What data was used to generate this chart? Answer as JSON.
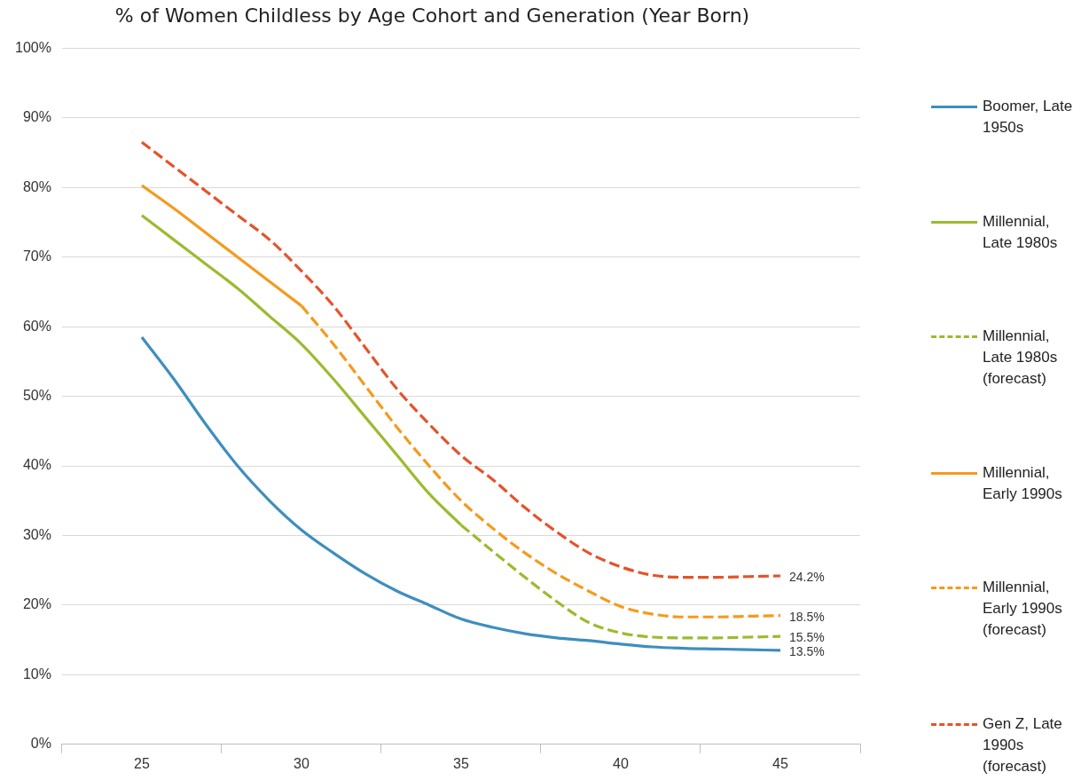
{
  "chart_data": {
    "type": "line",
    "title": "% of Women Childless by Age Cohort and Generation (Year Born)",
    "xlim": [
      22.5,
      47.5
    ],
    "xticks": [
      {
        "value": 22.5,
        "label": null
      },
      25,
      {
        "value": 27.5,
        "label": null
      },
      30,
      {
        "value": 32.5,
        "label": null
      },
      35,
      {
        "value": 37.5,
        "label": null
      },
      40,
      {
        "value": 42.5,
        "label": null
      },
      45,
      {
        "value": 47.5,
        "label": null
      }
    ],
    "ylim": [
      0,
      100
    ],
    "yticks": [
      {
        "value": 0,
        "label": "0%"
      },
      {
        "value": 10,
        "label": "10%"
      },
      {
        "value": 20,
        "label": "20%"
      },
      {
        "value": 30,
        "label": "30%"
      },
      {
        "value": 40,
        "label": "40%"
      },
      {
        "value": 50,
        "label": "50%"
      },
      {
        "value": 60,
        "label": "60%"
      },
      {
        "value": 70,
        "label": "70%"
      },
      {
        "value": 80,
        "label": "80%"
      },
      {
        "value": 90,
        "label": "90%"
      },
      {
        "value": 100,
        "label": "100%"
      }
    ],
    "grid": "y",
    "legend": "right",
    "marker": "none",
    "series": [
      {
        "name": "Boomer, Late 1950s",
        "color": "#3e8ebf",
        "line_style": "solid",
        "x": [
          25,
          26,
          27,
          28,
          29,
          30,
          31,
          32,
          33,
          34,
          35,
          36,
          37,
          38,
          39,
          40,
          41,
          42,
          43,
          44,
          45
        ],
        "values": [
          58.5,
          52.5,
          46,
          40,
          35,
          30.8,
          27.5,
          24.5,
          22,
          20,
          18,
          16.8,
          15.9,
          15.3,
          14.9,
          14.4,
          14.0,
          13.8,
          13.7,
          13.6,
          13.5
        ],
        "value_labels": [
          null,
          null,
          null,
          null,
          null,
          null,
          null,
          null,
          null,
          null,
          null,
          null,
          null,
          null,
          null,
          null,
          null,
          null,
          null,
          null,
          "13.5%"
        ]
      },
      {
        "name": "Millennial, Late 1980s",
        "color": "#9bbb2f",
        "line_style": "solid",
        "x": [
          25,
          26,
          27,
          28,
          29,
          30,
          31,
          32,
          33,
          34,
          35
        ],
        "values": [
          76,
          72.5,
          69,
          65.5,
          61.5,
          57.5,
          52.5,
          47,
          41.5,
          36,
          31.5
        ]
      },
      {
        "name": "Millennial, Late 1980s (forecast)",
        "color": "#9bbb2f",
        "line_style": "dashed",
        "x": [
          35,
          36,
          37,
          38,
          39,
          40,
          41,
          42,
          43,
          44,
          45
        ],
        "values": [
          31.5,
          27.7,
          24,
          20.5,
          17.5,
          16,
          15.4,
          15.3,
          15.3,
          15.4,
          15.5
        ],
        "value_labels": [
          null,
          null,
          null,
          null,
          null,
          null,
          null,
          null,
          null,
          null,
          "15.5%"
        ]
      },
      {
        "name": "Millennial, Early 1990s",
        "color": "#f59a1c",
        "line_style": "solid",
        "x": [
          25,
          26,
          27,
          28,
          29,
          30
        ],
        "values": [
          80.3,
          77,
          73.5,
          70,
          66.5,
          63
        ]
      },
      {
        "name": "Millennial, Early 1990s (forecast)",
        "color": "#f59a1c",
        "line_style": "dashed",
        "x": [
          30,
          31,
          32,
          33,
          34,
          35,
          36,
          37,
          38,
          39,
          40,
          41,
          42,
          43,
          44,
          45
        ],
        "values": [
          63,
          57.5,
          51.5,
          45.5,
          40,
          35,
          31,
          27.5,
          24.5,
          22,
          19.8,
          18.7,
          18.3,
          18.3,
          18.4,
          18.5
        ],
        "value_labels": [
          null,
          null,
          null,
          null,
          null,
          null,
          null,
          null,
          null,
          null,
          null,
          null,
          null,
          null,
          null,
          "18.5%"
        ]
      },
      {
        "name": "Gen Z, Late 1990s (forecast)",
        "color": "#e5532a",
        "line_style": "dashed",
        "x": [
          25,
          26,
          27,
          28,
          29,
          30,
          31,
          32,
          33,
          34,
          35,
          36,
          37,
          38,
          39,
          40,
          41,
          42,
          43,
          44,
          45
        ],
        "values": [
          86.5,
          83,
          79.5,
          76,
          72.5,
          68,
          63,
          57,
          51,
          46,
          41.5,
          38,
          34,
          30.5,
          27.5,
          25.5,
          24.3,
          24.0,
          24.0,
          24.1,
          24.2
        ],
        "value_labels": [
          null,
          null,
          null,
          null,
          null,
          null,
          null,
          null,
          null,
          null,
          null,
          null,
          null,
          null,
          null,
          null,
          null,
          null,
          null,
          null,
          "24.2%"
        ]
      }
    ]
  }
}
